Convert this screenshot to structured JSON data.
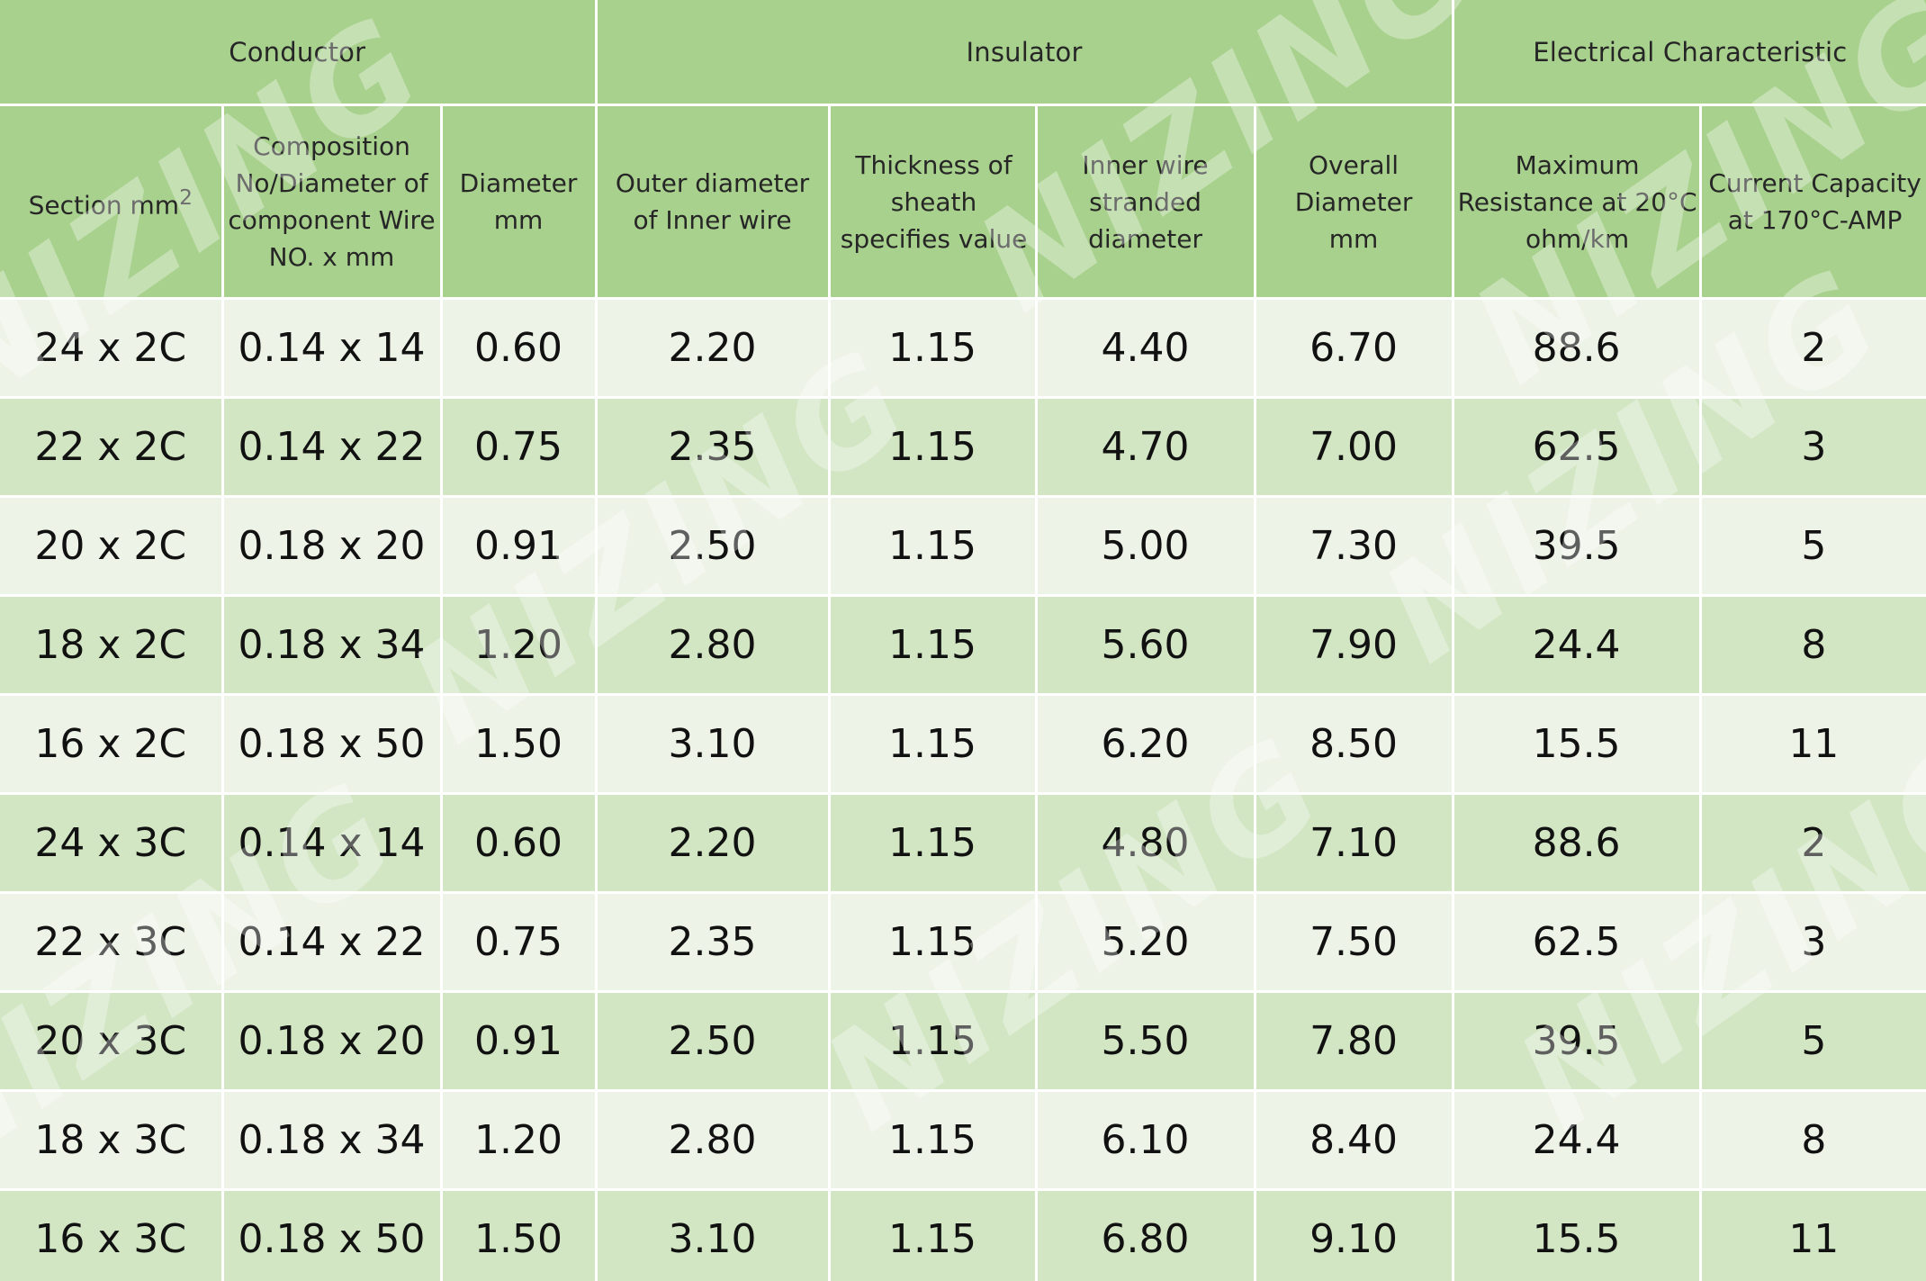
{
  "table": {
    "group_headers": [
      {
        "label": "Conductor",
        "colspan": 3
      },
      {
        "label": "Insulator",
        "colspan": 4
      },
      {
        "label": "Electrical Characteristic",
        "colspan": 2
      }
    ],
    "column_headers": [
      {
        "label": "Section mm",
        "sup": "2"
      },
      {
        "label": "Composition No/Diameter of component Wire NO. x mm"
      },
      {
        "label": "Diameter mm"
      },
      {
        "label": "Outer diameter of Inner wire"
      },
      {
        "label": "Thickness of sheath specifies value"
      },
      {
        "label": "Inner wire stranded diameter"
      },
      {
        "label": "Overall Diameter mm"
      },
      {
        "label": "Maximum Resistance at 20°C ohm/km"
      },
      {
        "label": "Current Capacity at 170°C-AMP"
      }
    ],
    "rows": [
      [
        "24 x 2C",
        "0.14 x 14",
        "0.60",
        "2.20",
        "1.15",
        "4.40",
        "6.70",
        "88.6",
        "2"
      ],
      [
        "22 x 2C",
        "0.14 x 22",
        "0.75",
        "2.35",
        "1.15",
        "4.70",
        "7.00",
        "62.5",
        "3"
      ],
      [
        "20 x 2C",
        "0.18 x 20",
        "0.91",
        "2.50",
        "1.15",
        "5.00",
        "7.30",
        "39.5",
        "5"
      ],
      [
        "18 x 2C",
        "0.18 x 34",
        "1.20",
        "2.80",
        "1.15",
        "5.60",
        "7.90",
        "24.4",
        "8"
      ],
      [
        "16 x 2C",
        "0.18 x 50",
        "1.50",
        "3.10",
        "1.15",
        "6.20",
        "8.50",
        "15.5",
        "11"
      ],
      [
        "24 x 3C",
        "0.14 x 14",
        "0.60",
        "2.20",
        "1.15",
        "4.80",
        "7.10",
        "88.6",
        "2"
      ],
      [
        "22 x 3C",
        "0.14 x 22",
        "0.75",
        "2.35",
        "1.15",
        "5.20",
        "7.50",
        "62.5",
        "3"
      ],
      [
        "20 x 3C",
        "0.18 x 20",
        "0.91",
        "2.50",
        "1.15",
        "5.50",
        "7.80",
        "39.5",
        "5"
      ],
      [
        "18 x 3C",
        "0.18 x 34",
        "1.20",
        "2.80",
        "1.15",
        "6.10",
        "8.40",
        "24.4",
        "8"
      ],
      [
        "16 x 3C",
        "0.18 x 50",
        "1.50",
        "3.10",
        "1.15",
        "6.80",
        "9.10",
        "15.5",
        "11"
      ]
    ]
  },
  "watermark": {
    "text": "NIZING",
    "color": "#ffffff"
  },
  "colors": {
    "header_green": "#a9d18e",
    "row_light": "#edf3e7",
    "row_green": "#d2e6c4"
  }
}
